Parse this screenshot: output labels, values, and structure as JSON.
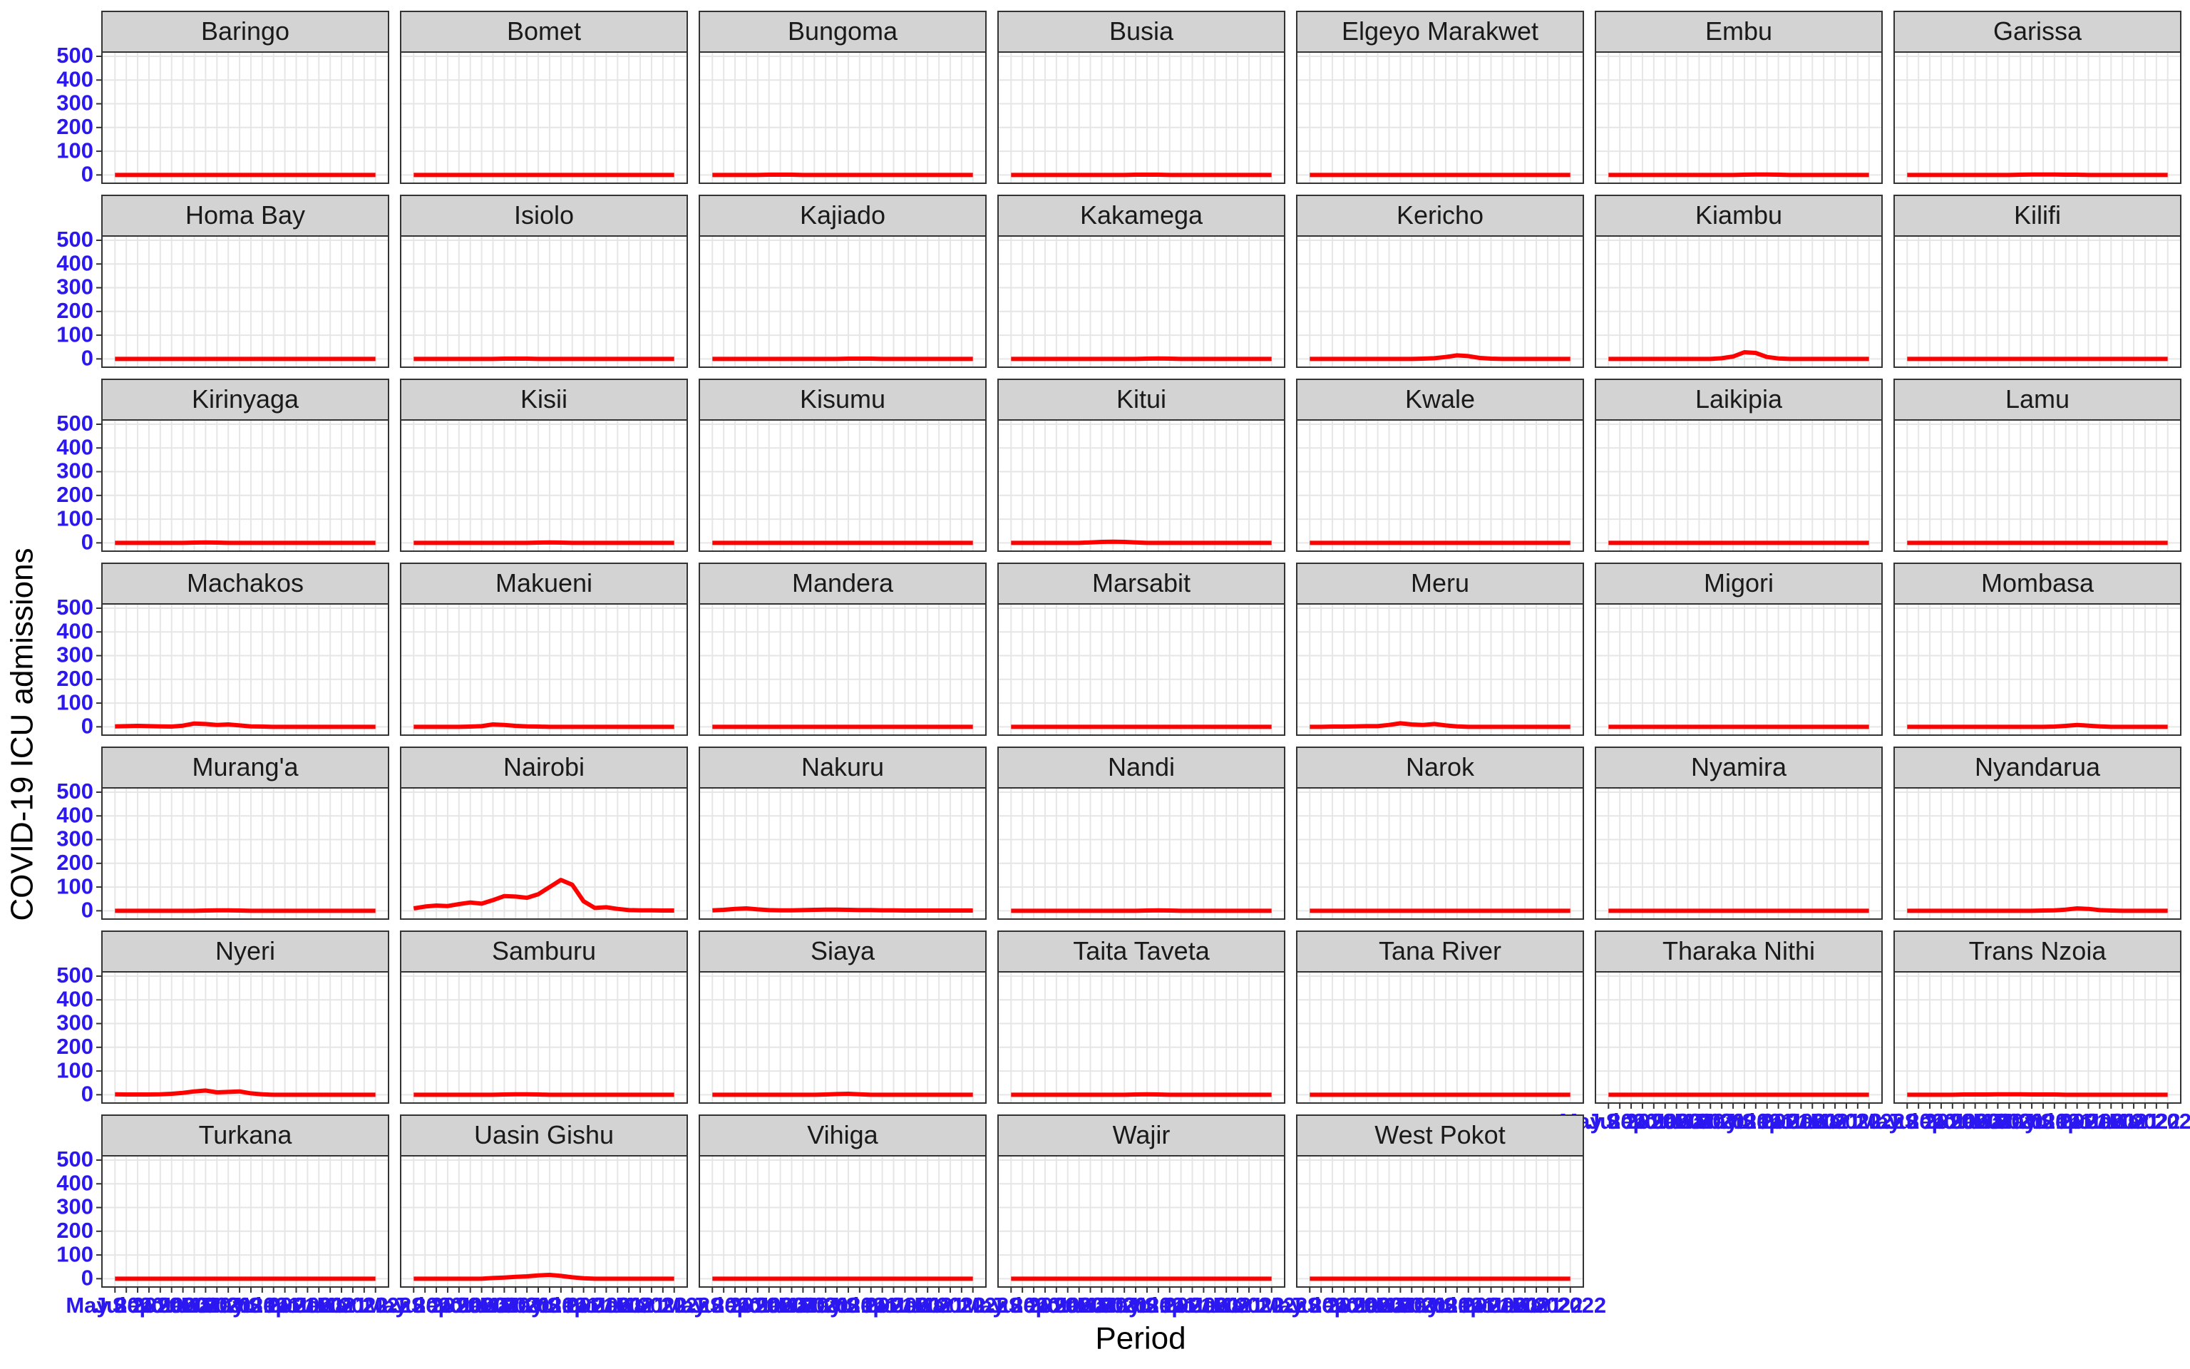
{
  "chart_data": {
    "type": "line",
    "y_label": "COVID-19 ICU admissions",
    "x_label": "Period",
    "color": "#ff0000",
    "grid": true,
    "ylim": [
      -35,
      518
    ],
    "yticks": [
      0,
      100,
      200,
      300,
      400,
      500
    ],
    "categories": [
      "May 2020",
      null,
      "Jul 2020",
      null,
      "Sep 2020",
      null,
      "Nov 2020",
      null,
      "Jan 2021",
      null,
      "Mar 2021",
      null,
      "May 2021",
      null,
      "Jul 2021",
      null,
      "Sep 2021",
      null,
      "Nov 2021",
      null,
      "Jan 2022",
      null,
      "Mar 2022",
      null
    ],
    "series": [
      {
        "name": "Baringo",
        "values": [
          0,
          0,
          0,
          0,
          0,
          0,
          0,
          0,
          0,
          0,
          0,
          0,
          0,
          0,
          0,
          0,
          0,
          0,
          0,
          0,
          0,
          0,
          0,
          0
        ]
      },
      {
        "name": "Bomet",
        "values": [
          0,
          0,
          0,
          0,
          0,
          0,
          0,
          0,
          0,
          0,
          0,
          0,
          0,
          0,
          0,
          0,
          0,
          0,
          0,
          0,
          0,
          0,
          0,
          0
        ]
      },
      {
        "name": "Bungoma",
        "values": [
          0,
          0,
          0,
          0,
          0,
          1,
          1,
          1,
          0,
          0,
          0,
          0,
          0,
          0,
          0,
          0,
          0,
          0,
          0,
          0,
          0,
          0,
          0,
          0
        ]
      },
      {
        "name": "Busia",
        "values": [
          0,
          0,
          0,
          0,
          0,
          0,
          0,
          0,
          0,
          0,
          0,
          1,
          1,
          1,
          0,
          0,
          0,
          0,
          0,
          0,
          0,
          0,
          0,
          0
        ]
      },
      {
        "name": "Elgeyo Marakwet",
        "values": [
          0,
          0,
          0,
          0,
          0,
          0,
          0,
          0,
          0,
          0,
          0,
          0,
          0,
          0,
          0,
          0,
          0,
          0,
          0,
          0,
          0,
          0,
          0,
          0
        ]
      },
      {
        "name": "Embu",
        "values": [
          0,
          0,
          0,
          0,
          0,
          0,
          0,
          0,
          0,
          0,
          0,
          0,
          1,
          2,
          2,
          1,
          0,
          0,
          0,
          0,
          0,
          0,
          0,
          0
        ]
      },
      {
        "name": "Garissa",
        "values": [
          0,
          0,
          0,
          0,
          0,
          0,
          0,
          0,
          0,
          0,
          1,
          2,
          2,
          2,
          1,
          1,
          0,
          0,
          0,
          0,
          0,
          0,
          0,
          0
        ]
      },
      {
        "name": "Homa Bay",
        "values": [
          0,
          0,
          0,
          0,
          0,
          0,
          0,
          0,
          0,
          0,
          0,
          0,
          0,
          0,
          0,
          0,
          0,
          0,
          0,
          0,
          0,
          0,
          0,
          0
        ]
      },
      {
        "name": "Isiolo",
        "values": [
          0,
          0,
          0,
          0,
          0,
          0,
          0,
          0,
          1,
          1,
          1,
          0,
          0,
          0,
          0,
          0,
          0,
          0,
          0,
          0,
          0,
          0,
          0,
          0
        ]
      },
      {
        "name": "Kajiado",
        "values": [
          0,
          0,
          0,
          0,
          0,
          0,
          0,
          0,
          0,
          0,
          0,
          0,
          1,
          1,
          1,
          0,
          0,
          0,
          0,
          0,
          0,
          0,
          0,
          0
        ]
      },
      {
        "name": "Kakamega",
        "values": [
          0,
          0,
          0,
          0,
          0,
          0,
          0,
          0,
          0,
          0,
          0,
          0,
          1,
          2,
          1,
          0,
          0,
          0,
          0,
          0,
          0,
          0,
          0,
          0
        ]
      },
      {
        "name": "Kericho",
        "values": [
          0,
          0,
          0,
          0,
          0,
          0,
          0,
          0,
          0,
          0,
          1,
          3,
          8,
          15,
          12,
          4,
          1,
          0,
          0,
          0,
          0,
          0,
          0,
          0
        ]
      },
      {
        "name": "Kiambu",
        "values": [
          0,
          0,
          0,
          0,
          0,
          0,
          0,
          0,
          0,
          0,
          3,
          10,
          28,
          25,
          8,
          2,
          0,
          0,
          0,
          0,
          0,
          0,
          0,
          0
        ]
      },
      {
        "name": "Kilifi",
        "values": [
          0,
          0,
          0,
          0,
          0,
          0,
          0,
          0,
          0,
          0,
          0,
          0,
          0,
          0,
          0,
          0,
          0,
          0,
          0,
          0,
          0,
          0,
          0,
          0
        ]
      },
      {
        "name": "Kirinyaga",
        "values": [
          0,
          0,
          0,
          0,
          0,
          0,
          0,
          1,
          2,
          1,
          0,
          0,
          0,
          0,
          0,
          0,
          0,
          0,
          0,
          0,
          0,
          0,
          0,
          0
        ]
      },
      {
        "name": "Kisii",
        "values": [
          0,
          0,
          0,
          0,
          0,
          0,
          0,
          0,
          0,
          0,
          0,
          1,
          2,
          1,
          0,
          0,
          0,
          0,
          0,
          0,
          0,
          0,
          0,
          0
        ]
      },
      {
        "name": "Kisumu",
        "values": [
          0,
          0,
          0,
          0,
          0,
          0,
          0,
          0,
          0,
          0,
          0,
          0,
          0,
          0,
          0,
          0,
          0,
          0,
          0,
          0,
          0,
          0,
          0,
          0
        ]
      },
      {
        "name": "Kitui",
        "values": [
          0,
          0,
          0,
          0,
          0,
          0,
          0,
          2,
          4,
          5,
          4,
          2,
          0,
          0,
          0,
          0,
          0,
          0,
          0,
          0,
          0,
          0,
          0,
          0
        ]
      },
      {
        "name": "Kwale",
        "values": [
          0,
          0,
          0,
          0,
          0,
          0,
          0,
          0,
          0,
          0,
          0,
          0,
          0,
          0,
          0,
          0,
          0,
          0,
          0,
          0,
          0,
          0,
          0,
          0
        ]
      },
      {
        "name": "Laikipia",
        "values": [
          0,
          0,
          0,
          0,
          0,
          0,
          0,
          0,
          0,
          0,
          0,
          0,
          0,
          0,
          0,
          0,
          0,
          0,
          0,
          0,
          0,
          0,
          0,
          0
        ]
      },
      {
        "name": "Lamu",
        "values": [
          0,
          0,
          0,
          0,
          0,
          0,
          0,
          0,
          0,
          0,
          0,
          0,
          0,
          0,
          0,
          0,
          0,
          0,
          0,
          0,
          0,
          0,
          0,
          0
        ]
      },
      {
        "name": "Machakos",
        "values": [
          2,
          3,
          4,
          3,
          2,
          1,
          5,
          14,
          12,
          8,
          10,
          6,
          2,
          1,
          0,
          0,
          0,
          0,
          0,
          0,
          0,
          0,
          0,
          0
        ]
      },
      {
        "name": "Makueni",
        "values": [
          0,
          0,
          0,
          0,
          0,
          1,
          3,
          10,
          8,
          4,
          2,
          1,
          0,
          0,
          0,
          0,
          0,
          0,
          0,
          0,
          0,
          0,
          0,
          0
        ]
      },
      {
        "name": "Mandera",
        "values": [
          0,
          0,
          0,
          0,
          0,
          0,
          0,
          0,
          0,
          0,
          0,
          0,
          0,
          0,
          0,
          0,
          0,
          0,
          0,
          0,
          0,
          0,
          0,
          0
        ]
      },
      {
        "name": "Marsabit",
        "values": [
          0,
          0,
          0,
          0,
          0,
          0,
          0,
          0,
          0,
          0,
          0,
          0,
          0,
          0,
          0,
          0,
          0,
          0,
          0,
          0,
          0,
          0,
          0,
          0
        ]
      },
      {
        "name": "Meru",
        "values": [
          0,
          0,
          1,
          1,
          2,
          3,
          3,
          8,
          15,
          10,
          8,
          12,
          6,
          2,
          0,
          0,
          0,
          0,
          0,
          0,
          0,
          0,
          0,
          0
        ]
      },
      {
        "name": "Migori",
        "values": [
          0,
          0,
          0,
          0,
          0,
          0,
          0,
          0,
          0,
          0,
          0,
          0,
          0,
          0,
          0,
          0,
          0,
          0,
          0,
          0,
          0,
          0,
          0,
          0
        ]
      },
      {
        "name": "Mombasa",
        "values": [
          0,
          0,
          0,
          0,
          0,
          0,
          0,
          0,
          0,
          0,
          0,
          0,
          0,
          1,
          4,
          8,
          5,
          2,
          0,
          0,
          0,
          0,
          0,
          0
        ]
      },
      {
        "name": "Murang'a",
        "values": [
          0,
          0,
          0,
          0,
          0,
          0,
          0,
          0,
          1,
          2,
          2,
          1,
          0,
          0,
          0,
          0,
          0,
          0,
          0,
          0,
          0,
          0,
          0,
          0
        ]
      },
      {
        "name": "Nairobi",
        "values": [
          10,
          18,
          22,
          20,
          28,
          35,
          30,
          45,
          62,
          60,
          55,
          70,
          100,
          130,
          110,
          40,
          12,
          15,
          8,
          3,
          2,
          2,
          1,
          1
        ]
      },
      {
        "name": "Nakuru",
        "values": [
          2,
          4,
          8,
          10,
          6,
          3,
          2,
          2,
          3,
          4,
          5,
          5,
          4,
          3,
          3,
          2,
          2,
          1,
          1,
          1,
          1,
          1,
          1,
          1
        ]
      },
      {
        "name": "Nandi",
        "values": [
          0,
          0,
          0,
          0,
          0,
          0,
          0,
          0,
          0,
          0,
          0,
          0,
          1,
          2,
          1,
          0,
          0,
          0,
          0,
          0,
          0,
          0,
          0,
          0
        ]
      },
      {
        "name": "Narok",
        "values": [
          0,
          0,
          0,
          0,
          0,
          0,
          0,
          0,
          0,
          0,
          0,
          0,
          0,
          0,
          0,
          0,
          0,
          0,
          0,
          0,
          0,
          0,
          0,
          0
        ]
      },
      {
        "name": "Nyamira",
        "values": [
          0,
          0,
          0,
          0,
          0,
          0,
          0,
          0,
          0,
          0,
          0,
          0,
          0,
          0,
          0,
          0,
          0,
          0,
          0,
          0,
          0,
          0,
          0,
          0
        ]
      },
      {
        "name": "Nyandarua",
        "values": [
          0,
          0,
          0,
          0,
          0,
          0,
          0,
          0,
          0,
          0,
          0,
          0,
          1,
          2,
          5,
          10,
          8,
          3,
          1,
          0,
          0,
          0,
          0,
          0
        ]
      },
      {
        "name": "Nyeri",
        "values": [
          2,
          1,
          1,
          1,
          2,
          4,
          8,
          14,
          18,
          10,
          12,
          14,
          6,
          2,
          0,
          0,
          0,
          0,
          0,
          0,
          0,
          0,
          0,
          0
        ]
      },
      {
        "name": "Samburu",
        "values": [
          0,
          0,
          0,
          0,
          0,
          0,
          0,
          0,
          1,
          2,
          2,
          1,
          0,
          0,
          0,
          0,
          0,
          0,
          0,
          0,
          0,
          0,
          0,
          0
        ]
      },
      {
        "name": "Siaya",
        "values": [
          0,
          0,
          0,
          0,
          0,
          0,
          0,
          0,
          0,
          0,
          1,
          3,
          4,
          2,
          0,
          0,
          0,
          0,
          0,
          0,
          0,
          0,
          0,
          0
        ]
      },
      {
        "name": "Taita Taveta",
        "values": [
          0,
          0,
          0,
          0,
          0,
          0,
          0,
          0,
          0,
          0,
          0,
          1,
          2,
          1,
          0,
          0,
          0,
          0,
          0,
          0,
          0,
          0,
          0,
          0
        ]
      },
      {
        "name": "Tana River",
        "values": [
          0,
          0,
          0,
          0,
          0,
          0,
          0,
          0,
          0,
          0,
          0,
          0,
          0,
          0,
          0,
          0,
          0,
          0,
          0,
          0,
          0,
          0,
          0,
          0
        ]
      },
      {
        "name": "Tharaka Nithi",
        "values": [
          0,
          0,
          0,
          0,
          0,
          0,
          0,
          0,
          0,
          0,
          0,
          0,
          0,
          0,
          0,
          0,
          0,
          0,
          0,
          0,
          0,
          0,
          0,
          0
        ]
      },
      {
        "name": "Trans Nzoia",
        "values": [
          0,
          0,
          0,
          0,
          0,
          1,
          1,
          1,
          2,
          2,
          2,
          1,
          1,
          1,
          0,
          0,
          0,
          0,
          0,
          0,
          0,
          0,
          0,
          0
        ]
      },
      {
        "name": "Turkana",
        "values": [
          0,
          0,
          0,
          0,
          0,
          0,
          0,
          0,
          0,
          0,
          0,
          0,
          0,
          0,
          0,
          0,
          0,
          0,
          0,
          0,
          0,
          0,
          0,
          0
        ]
      },
      {
        "name": "Uasin Gishu",
        "values": [
          0,
          0,
          0,
          0,
          0,
          0,
          0,
          3,
          5,
          8,
          10,
          14,
          16,
          12,
          6,
          2,
          0,
          0,
          0,
          0,
          0,
          0,
          0,
          0
        ]
      },
      {
        "name": "Vihiga",
        "values": [
          0,
          0,
          0,
          0,
          0,
          0,
          0,
          0,
          0,
          0,
          0,
          0,
          0,
          0,
          0,
          0,
          0,
          0,
          0,
          0,
          0,
          0,
          0,
          0
        ]
      },
      {
        "name": "Wajir",
        "values": [
          0,
          0,
          0,
          0,
          0,
          0,
          0,
          0,
          0,
          0,
          0,
          0,
          0,
          0,
          0,
          0,
          0,
          0,
          0,
          0,
          0,
          0,
          0,
          0
        ]
      },
      {
        "name": "West Pokot",
        "values": [
          0,
          0,
          0,
          0,
          0,
          0,
          0,
          0,
          0,
          0,
          0,
          0,
          0,
          0,
          0,
          0,
          0,
          0,
          0,
          0,
          0,
          0,
          0,
          0
        ]
      }
    ]
  }
}
